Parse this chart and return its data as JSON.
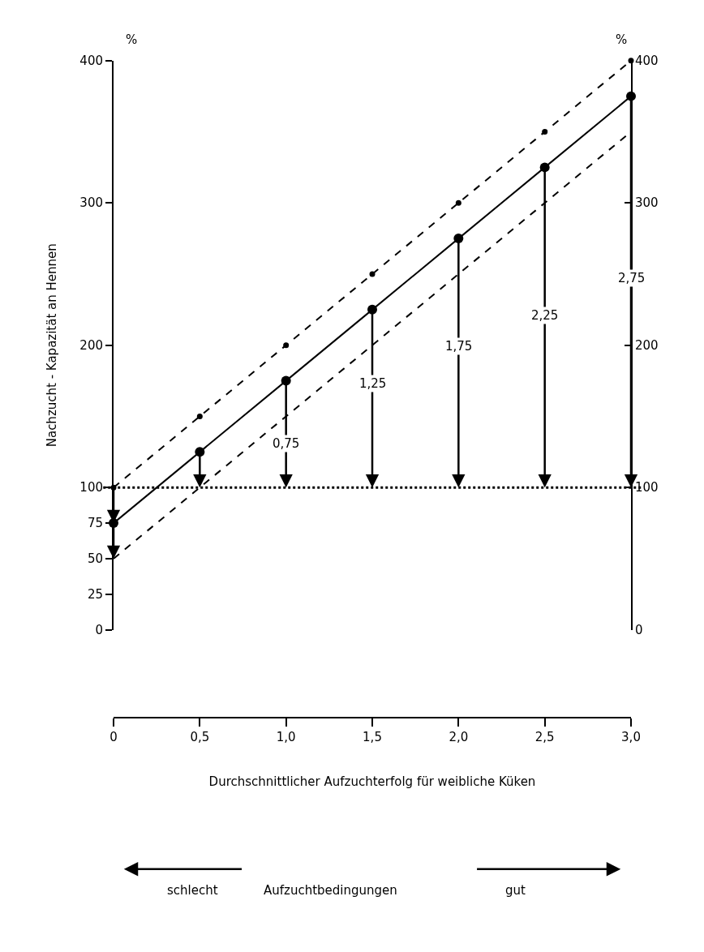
{
  "chart_data": {
    "type": "line",
    "ylabel": "Nachzucht - Kapazität an Hennen",
    "xlabel": "Durchschnittlicher Aufzuchterfolg für weibliche Küken",
    "x": [
      0,
      0.5,
      1.0,
      1.5,
      2.0,
      2.5,
      3.0
    ],
    "series": [
      {
        "color": "#000000",
        "values": [
          100,
          150,
          200,
          250,
          300,
          350,
          400
        ],
        "line_style": "dashed",
        "marker": "circle"
      },
      {
        "color": "#000000",
        "values": [
          75,
          125,
          175,
          225,
          275,
          325,
          375
        ],
        "line_style": "solid",
        "marker": "circle"
      },
      {
        "color": "#000000",
        "values": [
          50,
          100,
          150,
          200,
          250,
          300,
          350
        ],
        "line_style": "dashed",
        "marker": "none"
      }
    ],
    "xlim": [
      0,
      3
    ],
    "xticks": [
      0,
      {
        "value": 0.5,
        "label": "0,5"
      },
      {
        "value": 1,
        "label": "1,0"
      },
      {
        "value": 1.5,
        "label": "1,5"
      },
      {
        "value": 2,
        "label": "2,0"
      },
      {
        "value": 2.5,
        "label": "2,5"
      },
      {
        "value": 3,
        "label": "3,0"
      }
    ],
    "ylim": [
      0,
      400
    ],
    "yticks": [
      0,
      25,
      50,
      75,
      100,
      200,
      300,
      400
    ],
    "y2lim": [
      0,
      400
    ],
    "y2ticks": [
      0,
      100,
      200,
      300,
      400
    ],
    "ref_lines": [
      {
        "axis": "y",
        "value": 100,
        "line_style": "dotted",
        "color": "#000000"
      }
    ],
    "annotations": [
      "%",
      "%",
      {
        "text": "0,75",
        "x": 1.0,
        "y": 131
      },
      {
        "text": "1,25",
        "x": 1.5,
        "y": 173
      },
      {
        "text": "1,75",
        "x": 2.0,
        "y": 199
      },
      {
        "text": "2,25",
        "x": 2.5,
        "y": 221
      },
      {
        "text": "2,75",
        "x": 3.0,
        "y": 247
      },
      "schlecht",
      "Aufzuchtbedingungen",
      "gut"
    ],
    "grid": false
  }
}
